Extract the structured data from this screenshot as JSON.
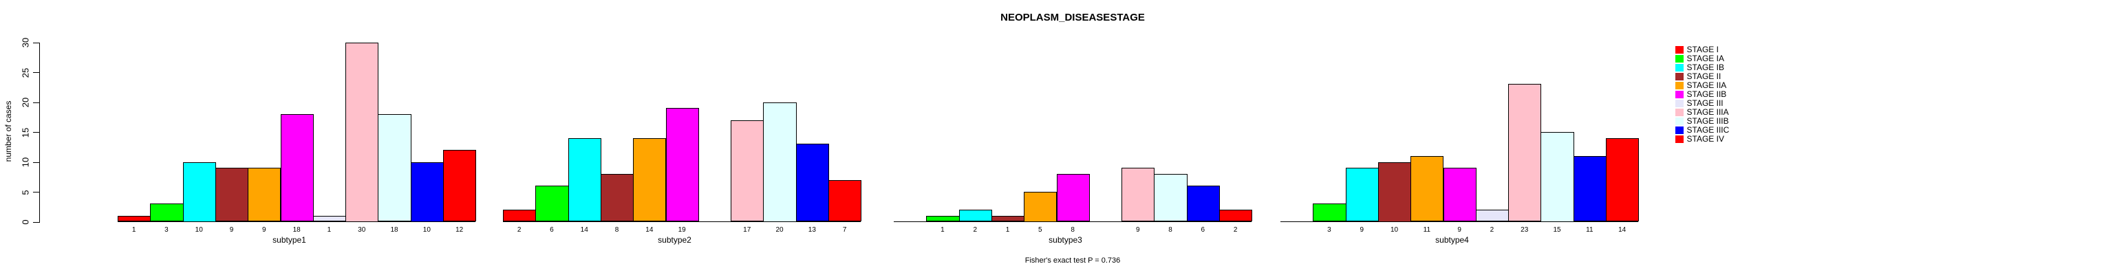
{
  "chart_data": {
    "type": "bar",
    "title": "NEOPLASM_DISEASESTAGE",
    "ylabel": "number of cases",
    "xlabel": "",
    "annotation": "Fisher's exact test P = 0.736",
    "ylim": [
      0,
      30
    ],
    "yticks": [
      0,
      5,
      10,
      15,
      20,
      25,
      30
    ],
    "grid": false,
    "legend_position": "right",
    "categories": [
      "subtype1",
      "subtype2",
      "subtype3",
      "subtype4"
    ],
    "series": [
      {
        "name": "STAGE I",
        "color": "#FF0000",
        "values": [
          1,
          2,
          0,
          0
        ]
      },
      {
        "name": "STAGE IA",
        "color": "#00FF00",
        "values": [
          3,
          6,
          1,
          3
        ]
      },
      {
        "name": "STAGE IB",
        "color": "#00FFFF",
        "values": [
          10,
          14,
          2,
          9
        ]
      },
      {
        "name": "STAGE II",
        "color": "#A52A2A",
        "values": [
          9,
          8,
          1,
          10
        ]
      },
      {
        "name": "STAGE IIA",
        "color": "#FFA500",
        "values": [
          9,
          14,
          5,
          11
        ]
      },
      {
        "name": "STAGE IIB",
        "color": "#FF00FF",
        "values": [
          18,
          19,
          8,
          9
        ]
      },
      {
        "name": "STAGE III",
        "color": "#E6E6FA",
        "values": [
          1,
          0,
          0,
          2
        ]
      },
      {
        "name": "STAGE IIIA",
        "color": "#FFC0CB",
        "values": [
          30,
          17,
          9,
          23
        ]
      },
      {
        "name": "STAGE IIIB",
        "color": "#E0FFFF",
        "values": [
          18,
          20,
          8,
          15
        ]
      },
      {
        "name": "STAGE IIIC",
        "color": "#0000FF",
        "values": [
          10,
          13,
          6,
          11
        ]
      },
      {
        "name": "STAGE IV",
        "color": "#FF0000",
        "values": [
          12,
          7,
          2,
          14
        ]
      }
    ]
  }
}
